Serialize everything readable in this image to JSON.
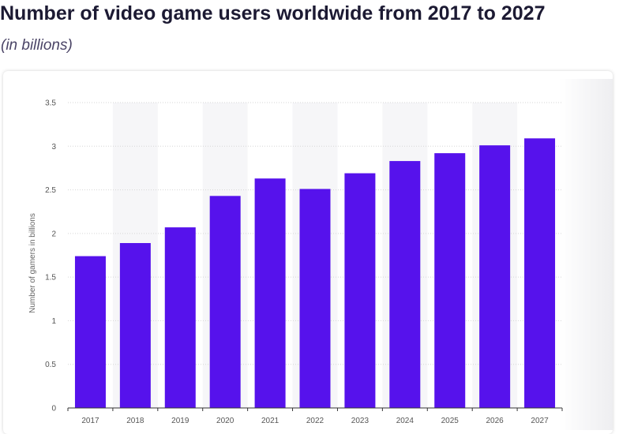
{
  "header": {
    "title": "Number of video game users worldwide from 2017 to 2027",
    "subtitle": "(in billions)"
  },
  "colors": {
    "bar": "#5612ec",
    "title": "#1c1a33",
    "gridline": "#d6d6d6",
    "band": "#f6f6f8"
  },
  "chart_data": {
    "type": "bar",
    "categories": [
      "2017",
      "2018",
      "2019",
      "2020",
      "2021",
      "2022",
      "2023",
      "2024",
      "2025",
      "2026",
      "2027"
    ],
    "values": [
      1.74,
      1.89,
      2.07,
      2.43,
      2.63,
      2.51,
      2.69,
      2.83,
      2.92,
      3.01,
      3.09
    ],
    "ylabel": "Number of gamers in billions",
    "xlabel": "",
    "ylim": [
      0,
      3.5
    ],
    "yticks": [
      "0",
      "0.5",
      "1",
      "1.5",
      "2",
      "2.5",
      "3",
      "3.5"
    ],
    "grid": true,
    "legend": "none"
  }
}
